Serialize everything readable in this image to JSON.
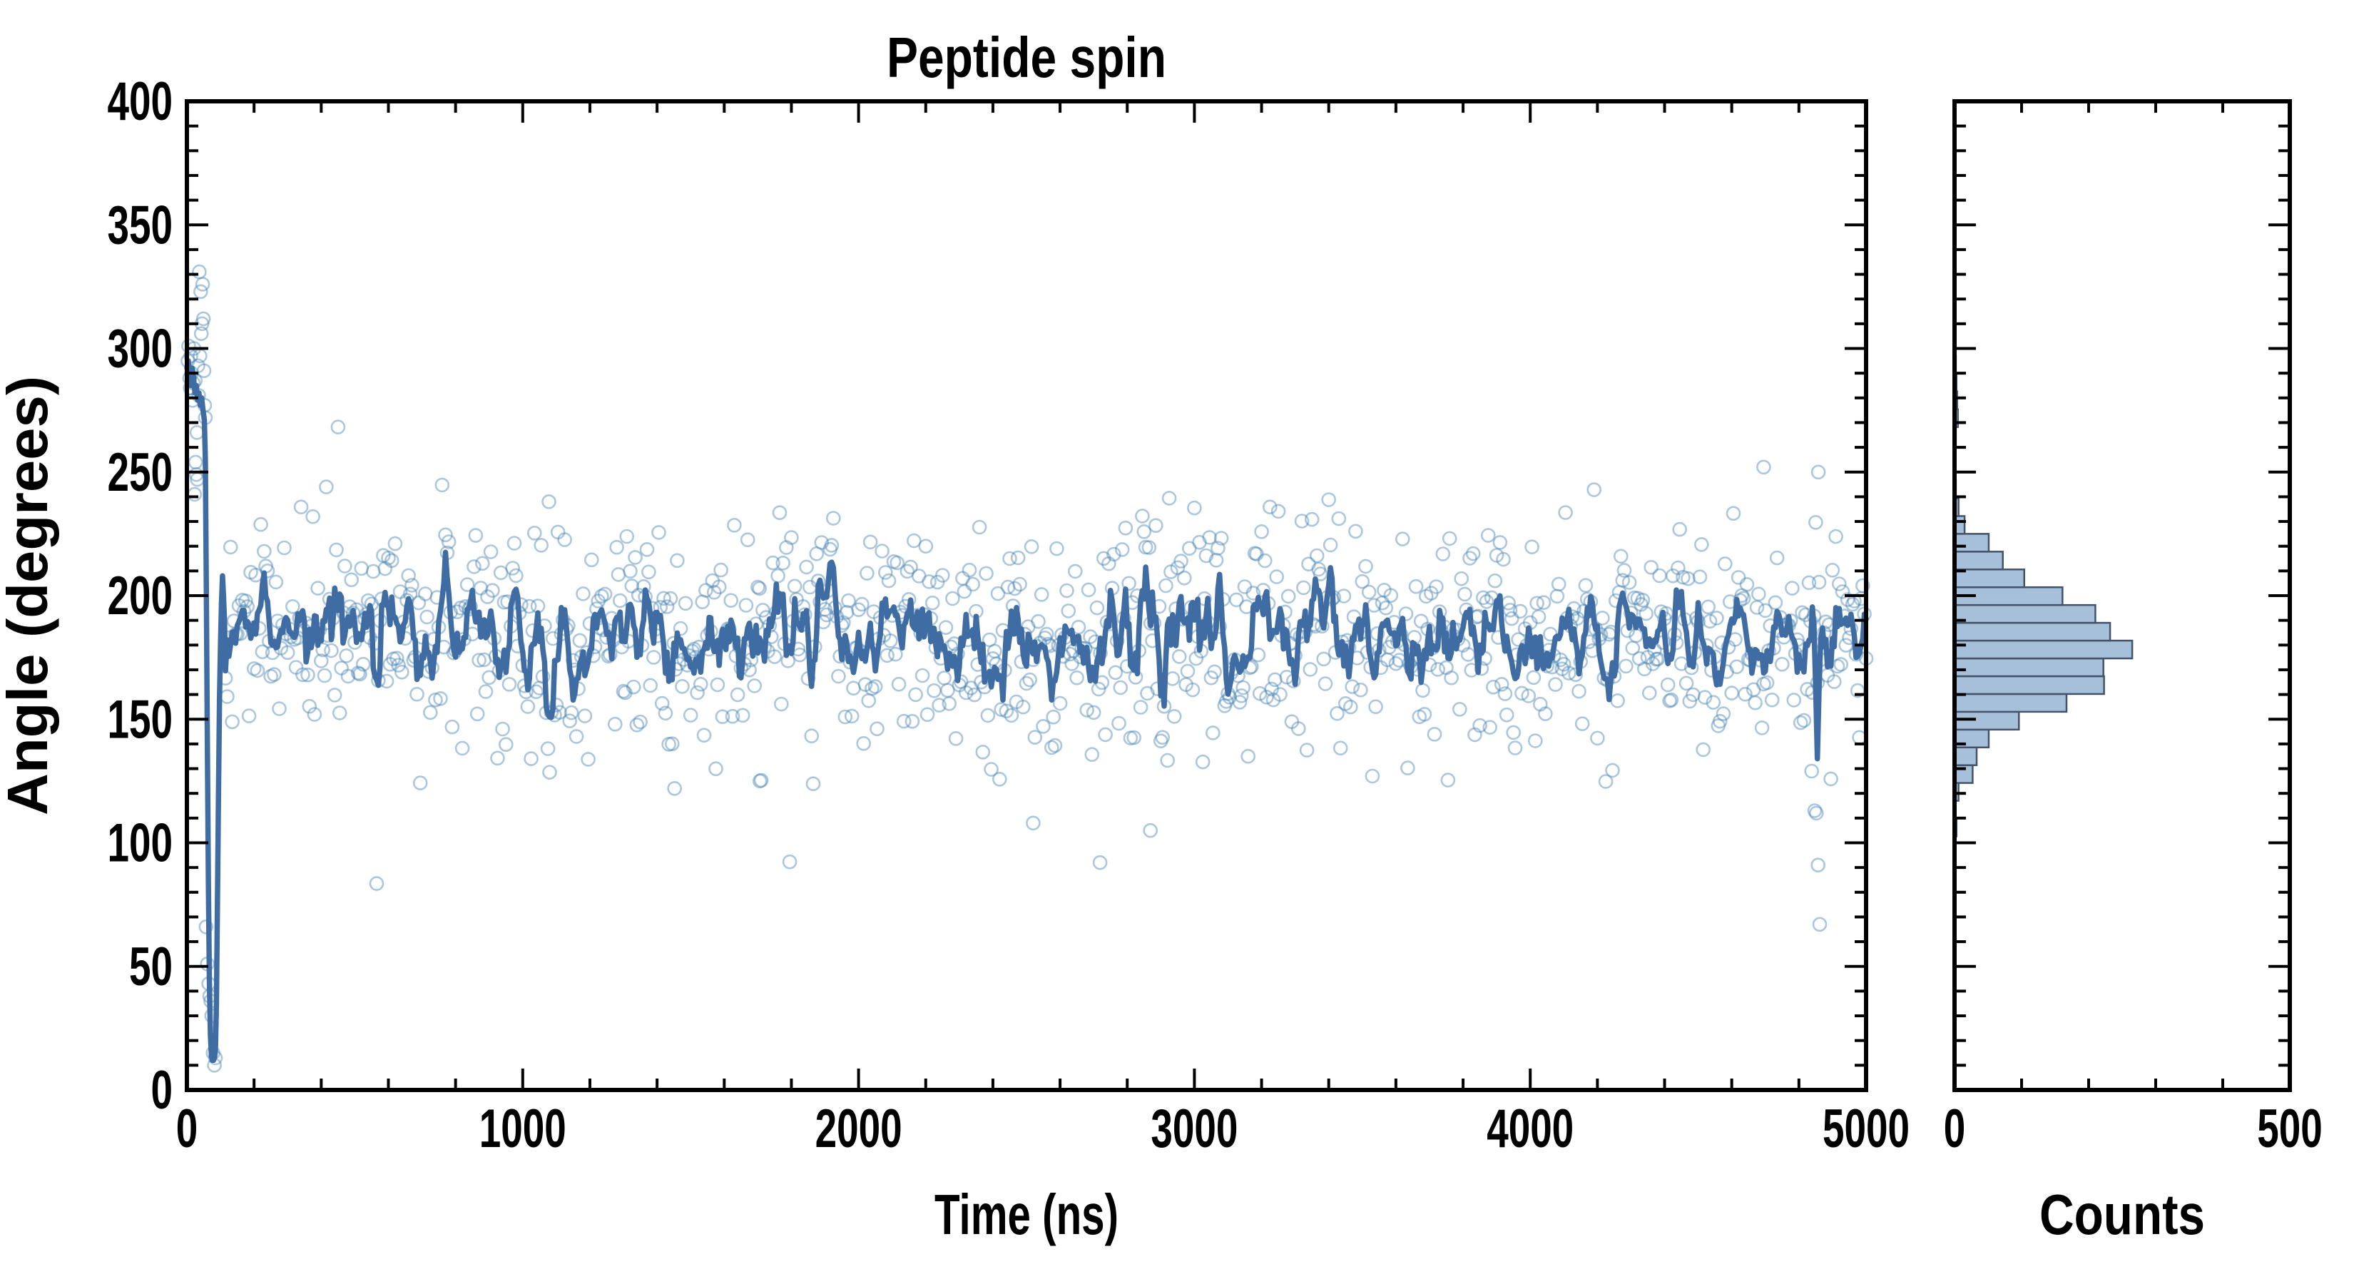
{
  "figure": {
    "background": "#ffffff",
    "title": "Peptide spin"
  },
  "chart_data": [
    {
      "type": "scatter",
      "title": "Peptide spin",
      "xlabel": "Time (ns)",
      "ylabel": "Angle (degrees)",
      "xlim": [
        0,
        5000
      ],
      "ylim": [
        0,
        400
      ],
      "x_major_tick": 1000,
      "x_minor_tick": 200,
      "y_major_tick": 50,
      "y_minor_tick": 10,
      "x_tick_labels": [
        "0",
        "1000",
        "2000",
        "3000",
        "4000",
        "5000"
      ],
      "y_tick_labels": [
        "0",
        "50",
        "100",
        "150",
        "200",
        "250",
        "300",
        "350",
        "400"
      ],
      "grid": false,
      "legend": "none",
      "series": [
        {
          "name": "angle-samples",
          "style": "scatter",
          "marker": "open-circle",
          "color": "#4682b4",
          "opacity": 0.45,
          "n_points": 1030
        },
        {
          "name": "running-average",
          "style": "line",
          "color": "#3f6da3",
          "width": 7.5
        }
      ],
      "band": {
        "start_t": 115,
        "dt": 5,
        "n": 978,
        "mean": 183,
        "sd": 23,
        "min": 123,
        "max": 246,
        "seed": 77,
        "low_tail_p": 0.005,
        "high_tail_p": 0.004,
        "smooth_window": 5
      },
      "transient_scatter": [
        [
          3,
          295
        ],
        [
          5,
          301
        ],
        [
          8,
          288
        ],
        [
          10,
          284
        ],
        [
          12,
          297
        ],
        [
          14,
          290
        ],
        [
          17,
          279
        ],
        [
          19,
          286
        ],
        [
          21,
          300
        ],
        [
          23,
          241
        ],
        [
          25,
          287
        ],
        [
          26,
          254
        ],
        [
          28,
          249
        ],
        [
          30,
          266
        ],
        [
          31,
          247
        ],
        [
          33,
          293
        ],
        [
          35,
          281
        ],
        [
          37,
          331
        ],
        [
          39,
          297
        ],
        [
          41,
          323
        ],
        [
          43,
          306
        ],
        [
          45,
          310
        ],
        [
          47,
          326
        ],
        [
          49,
          312
        ],
        [
          51,
          291
        ],
        [
          53,
          277
        ],
        [
          55,
          272
        ],
        [
          57,
          66
        ],
        [
          61,
          51
        ],
        [
          65,
          43
        ],
        [
          68,
          38
        ],
        [
          71,
          36
        ],
        [
          74,
          30
        ],
        [
          78,
          15
        ],
        [
          82,
          10
        ],
        [
          85,
          13
        ]
      ],
      "transient_line": [
        [
          0,
          292
        ],
        [
          4,
          295
        ],
        [
          8,
          289
        ],
        [
          12,
          285
        ],
        [
          16,
          292
        ],
        [
          20,
          288
        ],
        [
          24,
          282
        ],
        [
          28,
          285
        ],
        [
          32,
          279
        ],
        [
          36,
          282
        ],
        [
          40,
          277
        ],
        [
          44,
          280
        ],
        [
          48,
          275
        ],
        [
          52,
          271
        ],
        [
          55,
          255
        ],
        [
          58,
          200
        ],
        [
          61,
          140
        ],
        [
          64,
          85
        ],
        [
          67,
          45
        ],
        [
          70,
          22
        ],
        [
          73,
          14
        ],
        [
          76,
          12
        ],
        [
          79,
          12
        ],
        [
          82,
          13
        ],
        [
          85,
          16
        ],
        [
          88,
          35
        ],
        [
          91,
          75
        ],
        [
          94,
          120
        ],
        [
          97,
          158
        ],
        [
          100,
          180
        ],
        [
          103,
          197
        ],
        [
          106,
          208
        ],
        [
          109,
          200
        ],
        [
          112,
          190
        ]
      ],
      "outlier_scatter": [
        [
          1078,
          238
        ],
        [
          1452,
          122
        ],
        [
          1706,
          125
        ],
        [
          2520,
          108
        ],
        [
          2719,
          92
        ],
        [
          2869,
          105
        ],
        [
          4695,
          252
        ],
        [
          4838,
          129
        ],
        [
          4847,
          113
        ],
        [
          4852,
          112
        ],
        [
          4857,
          91
        ],
        [
          4862,
          67
        ],
        [
          4858,
          250
        ]
      ],
      "line_dip": {
        "t": 4856,
        "angle": 134
      }
    },
    {
      "type": "bar",
      "orientation": "horizontal",
      "xlabel": "Counts",
      "ylabel": "",
      "xlim": [
        0,
        500
      ],
      "ylim": [
        0,
        400
      ],
      "x_major_tick": 500,
      "x_minor_tick": 100,
      "y_major_tick": 50,
      "y_minor_tick": 10,
      "x_tick_labels": [
        "0",
        "500"
      ],
      "bar_fill": "#a6c0da",
      "bar_edge": "#44536a",
      "bins_angle_lo_hi_count": [
        [
          102.6,
          109.8,
          3
        ],
        [
          109.8,
          117.0,
          0
        ],
        [
          117.0,
          124.2,
          6
        ],
        [
          124.2,
          131.4,
          27
        ],
        [
          131.4,
          138.6,
          33
        ],
        [
          138.6,
          145.8,
          51
        ],
        [
          145.8,
          153.0,
          96
        ],
        [
          153.0,
          160.2,
          167
        ],
        [
          160.2,
          167.4,
          223
        ],
        [
          167.4,
          174.6,
          222
        ],
        [
          174.6,
          181.8,
          265
        ],
        [
          181.8,
          189.0,
          232
        ],
        [
          189.0,
          196.2,
          210
        ],
        [
          196.2,
          203.4,
          161
        ],
        [
          203.4,
          210.6,
          104
        ],
        [
          210.6,
          217.8,
          72
        ],
        [
          217.8,
          225.0,
          51
        ],
        [
          225.0,
          232.2,
          15
        ],
        [
          232.2,
          239.4,
          6
        ],
        [
          239.4,
          246.6,
          2
        ],
        [
          261.0,
          268.2,
          2
        ],
        [
          268.2,
          275.4,
          5
        ],
        [
          275.4,
          282.6,
          4
        ],
        [
          282.6,
          289.8,
          3
        ],
        [
          289.8,
          297.0,
          2
        ],
        [
          297.0,
          304.2,
          1
        ]
      ]
    }
  ]
}
